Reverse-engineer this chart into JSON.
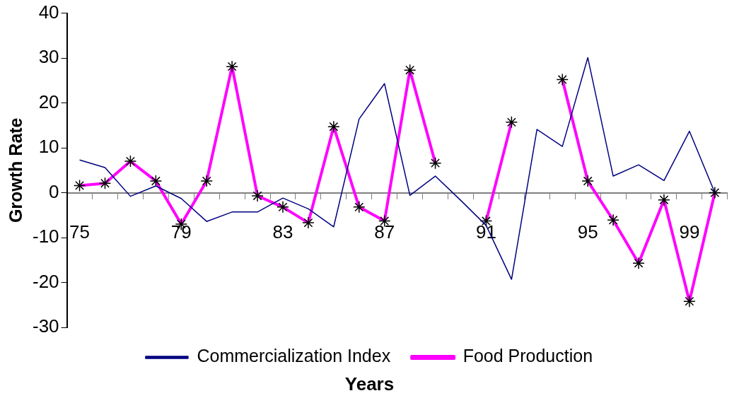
{
  "chart_data": {
    "type": "line",
    "xlabel": "Years",
    "ylabel": "Growth Rate",
    "categories": [
      "75",
      null,
      null,
      null,
      "79",
      null,
      null,
      null,
      "83",
      null,
      null,
      null,
      "87",
      null,
      null,
      null,
      "91",
      null,
      null,
      null,
      "95",
      null,
      null,
      null,
      "99",
      null
    ],
    "series": [
      {
        "name": "Commercialization Index",
        "color": "#000080",
        "marker": "none",
        "values": [
          7.3,
          5.6,
          -0.8,
          1.5,
          -1.3,
          -6.4,
          -4.3,
          -4.3,
          -1.2,
          -3.6,
          -7.6,
          16.4,
          24.3,
          -0.6,
          3.7,
          -1.7,
          -7.3,
          -19.3,
          14.1,
          10.3,
          30.1,
          3.7,
          6.2,
          2.7,
          13.7,
          0
        ]
      },
      {
        "name": "Food Production",
        "color": "#ff00ff",
        "marker": "cross",
        "values": [
          1.6,
          2.1,
          7.0,
          2.6,
          -7.0,
          2.6,
          28.1,
          -0.7,
          -3.2,
          -6.7,
          14.7,
          -3.2,
          -6.3,
          27.3,
          6.6,
          null,
          -6.3,
          15.7,
          null,
          25.2,
          2.6,
          -6.1,
          -15.7,
          -1.6,
          -24.2,
          0
        ]
      }
    ],
    "ylim": [
      -30,
      40
    ],
    "yticks": [
      -30,
      -20,
      -10,
      0,
      10,
      20,
      30,
      40
    ],
    "grid": false,
    "legend": "bottom"
  }
}
